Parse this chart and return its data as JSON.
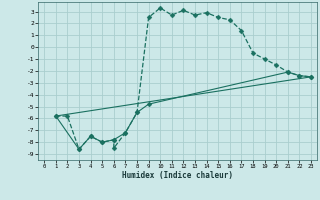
{
  "xlabel": "Humidex (Indice chaleur)",
  "bg_color": "#cce8e8",
  "grid_color": "#aacece",
  "line_color": "#1a7060",
  "xlim": [
    -0.5,
    23.5
  ],
  "ylim": [
    -9.5,
    3.8
  ],
  "xticks": [
    0,
    1,
    2,
    3,
    4,
    5,
    6,
    7,
    8,
    9,
    10,
    11,
    12,
    13,
    14,
    15,
    16,
    17,
    18,
    19,
    20,
    21,
    22,
    23
  ],
  "yticks": [
    3,
    2,
    1,
    0,
    -1,
    -2,
    -3,
    -4,
    -5,
    -6,
    -7,
    -8,
    -9
  ],
  "curve1_x": [
    1,
    2,
    3,
    4,
    5,
    6,
    6,
    7,
    8,
    9,
    10,
    11,
    12,
    13,
    14,
    15,
    16,
    17,
    18,
    19,
    20,
    21,
    22,
    23
  ],
  "curve1_y": [
    -5.8,
    -5.8,
    -8.6,
    -7.5,
    -8.0,
    -7.8,
    -8.5,
    -7.2,
    -5.5,
    2.5,
    3.3,
    2.7,
    3.1,
    2.7,
    2.9,
    2.5,
    2.3,
    1.4,
    -0.5,
    -1.0,
    -1.5,
    -2.1,
    -2.4,
    -2.5
  ],
  "curve2_x": [
    1,
    3,
    4,
    5,
    6,
    7,
    8,
    9,
    21,
    22,
    23
  ],
  "curve2_y": [
    -5.8,
    -8.6,
    -7.5,
    -8.0,
    -7.8,
    -7.2,
    -5.5,
    -4.8,
    -2.1,
    -2.4,
    -2.5
  ],
  "curve3_x": [
    1,
    23
  ],
  "curve3_y": [
    -5.8,
    -2.5
  ],
  "marker_size": 2.5
}
